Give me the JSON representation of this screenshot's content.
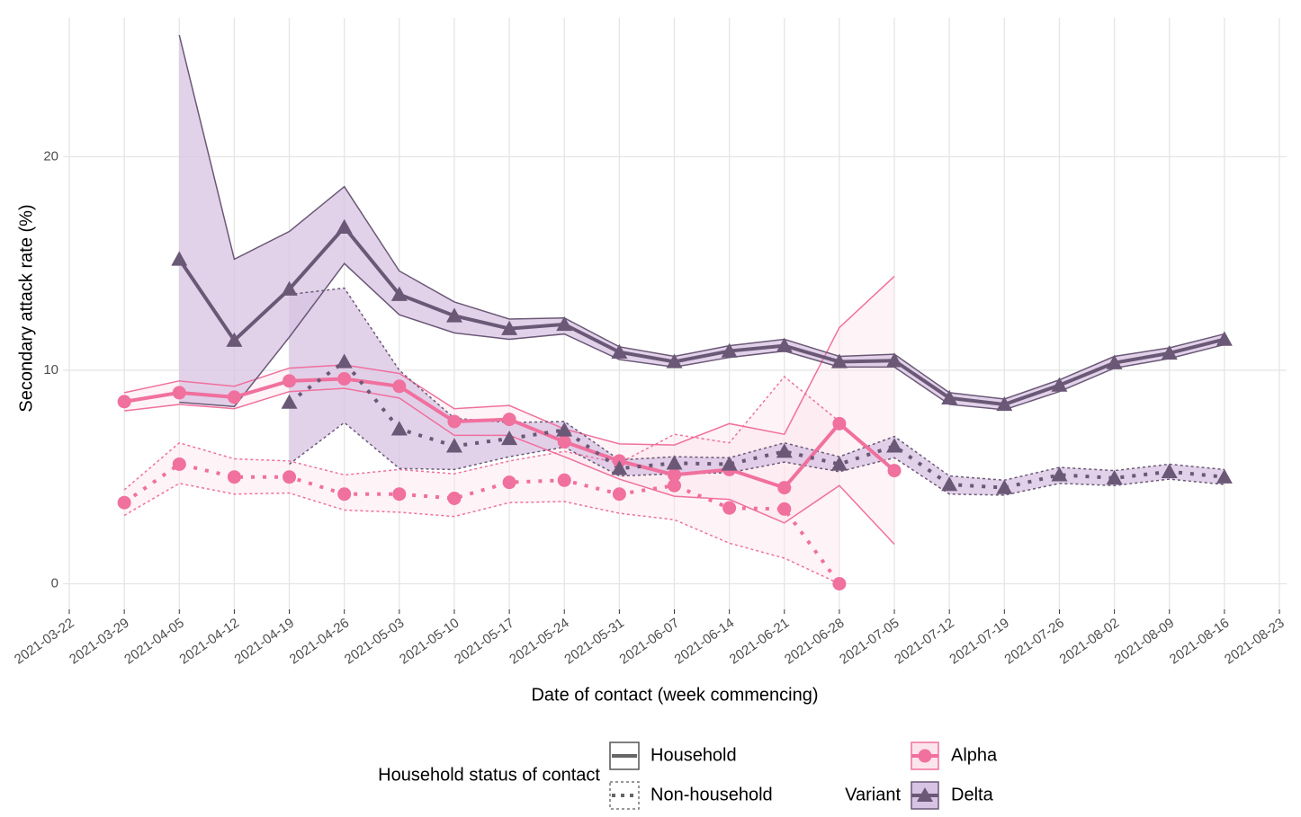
{
  "chart_data": {
    "type": "line",
    "x_label": "Date of contact (week commencing)",
    "y_label": "Secondary attack rate (%)",
    "xlim": [
      "2021-03-22",
      "2021-08-23"
    ],
    "xticks": [
      "2021-03-22",
      "2021-03-29",
      "2021-04-05",
      "2021-04-12",
      "2021-04-19",
      "2021-04-26",
      "2021-05-03",
      "2021-05-10",
      "2021-05-17",
      "2021-05-24",
      "2021-05-31",
      "2021-06-07",
      "2021-06-14",
      "2021-06-21",
      "2021-06-28",
      "2021-07-05",
      "2021-07-12",
      "2021-07-19",
      "2021-07-26",
      "2021-08-02",
      "2021-08-09",
      "2021-08-16",
      "2021-08-23"
    ],
    "ylim": [
      -1.2,
      26.5
    ],
    "yticks": [
      0,
      10,
      20
    ],
    "grid": true,
    "household_status": {
      "title": "Household status of contact",
      "entries": [
        {
          "name": "Household",
          "linetype": "solid"
        },
        {
          "name": "Non-household",
          "linetype": "dotted"
        }
      ]
    },
    "variant_legend_title": "Variant",
    "variants": [
      {
        "name": "Alpha",
        "color": "#f0709e",
        "band_color": "#fce4ec",
        "marker": "circle",
        "series": [
          {
            "x": [
              "2021-03-29",
              "2021-04-05",
              "2021-04-12",
              "2021-04-19",
              "2021-04-26",
              "2021-05-03",
              "2021-05-10",
              "2021-05-17",
              "2021-05-24",
              "2021-05-31",
              "2021-06-07",
              "2021-06-14",
              "2021-06-21",
              "2021-06-28",
              "2021-07-05"
            ],
            "values": [
              8.53,
              8.95,
              8.74,
              9.5,
              9.6,
              9.25,
              7.6,
              7.7,
              6.65,
              5.75,
              5.1,
              5.35,
              4.5,
              7.5,
              5.3
            ],
            "lower": [
              8.1,
              8.4,
              8.2,
              9.0,
              9.15,
              8.7,
              6.95,
              6.95,
              5.95,
              4.9,
              4.1,
              3.95,
              2.85,
              4.6,
              1.85
            ],
            "upper": [
              8.95,
              9.5,
              9.25,
              10.1,
              10.25,
              9.85,
              8.2,
              8.35,
              7.25,
              6.55,
              6.5,
              7.5,
              7.0,
              12.0,
              14.4
            ]
          },
          {
            "x": [
              "2021-03-29",
              "2021-04-05",
              "2021-04-12",
              "2021-04-19",
              "2021-04-26",
              "2021-05-03",
              "2021-05-10",
              "2021-05-17",
              "2021-05-24",
              "2021-05-31",
              "2021-06-07",
              "2021-06-14",
              "2021-06-21",
              "2021-06-28"
            ],
            "values": [
              3.8,
              5.6,
              5.0,
              5.0,
              4.2,
              4.2,
              4.0,
              4.75,
              4.85,
              4.2,
              4.6,
              3.55,
              3.5,
              0
            ],
            "lower": [
              3.2,
              4.7,
              4.2,
              4.25,
              3.45,
              3.35,
              3.15,
              3.8,
              3.85,
              3.3,
              3.0,
              1.9,
              1.2,
              0
            ],
            "upper": [
              4.4,
              6.6,
              5.85,
              5.75,
              5.1,
              5.35,
              5.15,
              5.75,
              6.2,
              5.65,
              7.0,
              6.6,
              9.7,
              7.6
            ]
          }
        ]
      },
      {
        "name": "Delta",
        "color": "#6b5876",
        "band_color": "#d7c3e3",
        "marker": "triangle",
        "series": [
          {
            "x": [
              "2021-04-05",
              "2021-04-12",
              "2021-04-19",
              "2021-04-26",
              "2021-05-03",
              "2021-05-10",
              "2021-05-17",
              "2021-05-24",
              "2021-05-31",
              "2021-06-07",
              "2021-06-14",
              "2021-06-21",
              "2021-06-28",
              "2021-07-05",
              "2021-07-12",
              "2021-07-19",
              "2021-07-26",
              "2021-08-02",
              "2021-08-09",
              "2021-08-16"
            ],
            "values": [
              15.2,
              11.4,
              13.8,
              16.7,
              13.55,
              12.55,
              11.95,
              12.15,
              10.85,
              10.4,
              10.9,
              11.15,
              10.4,
              10.45,
              8.7,
              8.4,
              9.3,
              10.35,
              10.8,
              11.45
            ],
            "lower": [
              8.5,
              8.3,
              11.55,
              15.0,
              12.6,
              11.75,
              11.45,
              11.7,
              10.5,
              10.15,
              10.6,
              10.9,
              10.15,
              10.15,
              8.4,
              8.15,
              9.0,
              10.1,
              10.55,
              11.2
            ],
            "upper": [
              25.7,
              15.2,
              16.5,
              18.6,
              14.65,
              13.2,
              12.4,
              12.45,
              11.1,
              10.65,
              11.15,
              11.45,
              10.65,
              10.75,
              8.95,
              8.65,
              9.55,
              10.65,
              11.05,
              11.7
            ]
          },
          {
            "x": [
              "2021-04-19",
              "2021-04-26",
              "2021-05-03",
              "2021-05-10",
              "2021-05-17",
              "2021-05-24",
              "2021-05-31",
              "2021-06-07",
              "2021-06-14",
              "2021-06-21",
              "2021-06-28",
              "2021-07-05",
              "2021-07-12",
              "2021-07-19",
              "2021-07-26",
              "2021-08-02",
              "2021-08-09",
              "2021-08-16"
            ],
            "values": [
              8.5,
              10.4,
              7.25,
              6.45,
              6.8,
              7.2,
              5.4,
              5.65,
              5.6,
              6.2,
              5.6,
              6.45,
              4.65,
              4.5,
              5.1,
              4.95,
              5.25,
              5.0
            ],
            "lower": [
              5.6,
              7.55,
              5.4,
              5.35,
              5.95,
              6.4,
              5.05,
              5.15,
              5.2,
              5.7,
              5.25,
              5.9,
              4.2,
              4.15,
              4.7,
              4.6,
              4.9,
              4.65
            ],
            "upper": [
              13.55,
              13.85,
              10.0,
              7.75,
              7.55,
              7.6,
              5.8,
              5.95,
              5.9,
              6.6,
              5.95,
              6.9,
              5.05,
              4.85,
              5.45,
              5.3,
              5.6,
              5.35
            ]
          }
        ]
      }
    ]
  }
}
